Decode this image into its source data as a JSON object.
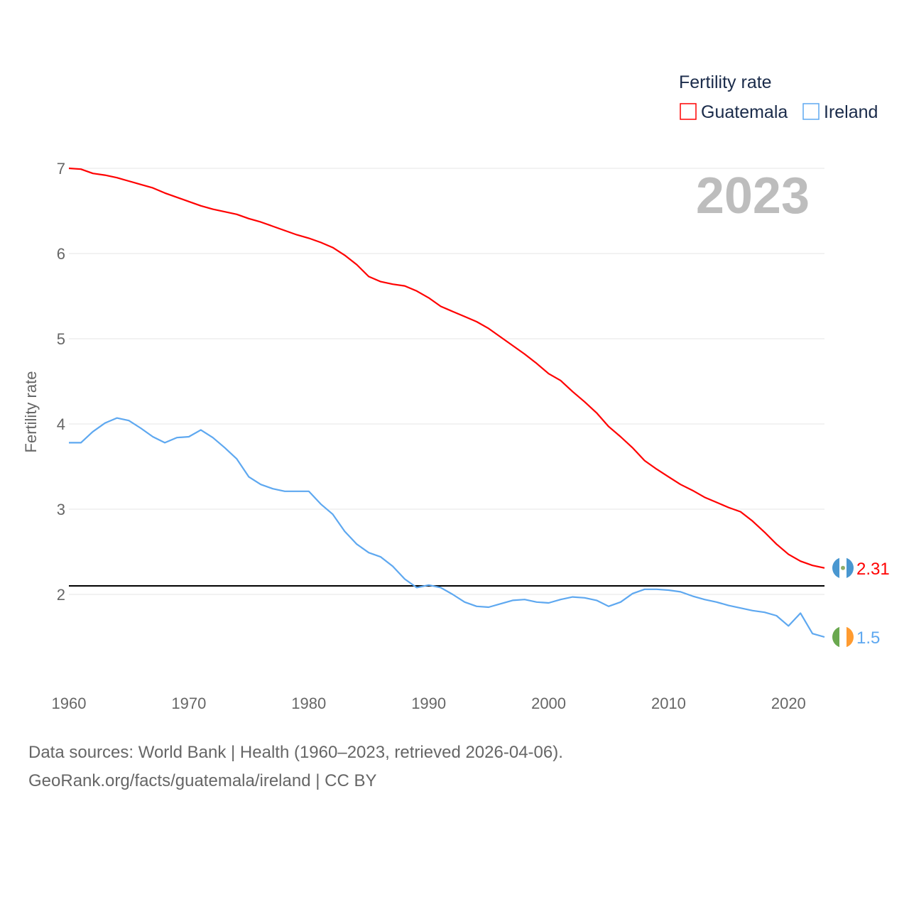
{
  "chart_data": {
    "type": "line",
    "legend_title": "Fertility rate",
    "ylabel": "Fertility rate",
    "xlabel": "",
    "year_label": "2023",
    "xlim": [
      1960,
      2023
    ],
    "ylim": [
      1.1,
      7.4
    ],
    "x_ticks": [
      1960,
      1970,
      1980,
      1990,
      2000,
      2010,
      2020
    ],
    "y_ticks": [
      2,
      3,
      4,
      5,
      6,
      7
    ],
    "reference_line": 2.1,
    "legend_position": "top-right",
    "x": [
      1960,
      1961,
      1962,
      1963,
      1964,
      1965,
      1966,
      1967,
      1968,
      1969,
      1970,
      1971,
      1972,
      1973,
      1974,
      1975,
      1976,
      1977,
      1978,
      1979,
      1980,
      1981,
      1982,
      1983,
      1984,
      1985,
      1986,
      1987,
      1988,
      1989,
      1990,
      1991,
      1992,
      1993,
      1994,
      1995,
      1996,
      1997,
      1998,
      1999,
      2000,
      2001,
      2002,
      2003,
      2004,
      2005,
      2006,
      2007,
      2008,
      2009,
      2010,
      2011,
      2012,
      2013,
      2014,
      2015,
      2016,
      2017,
      2018,
      2019,
      2020,
      2021,
      2022,
      2023
    ],
    "series": [
      {
        "name": "Guatemala",
        "color": "#ff0000",
        "end_label": "2.31",
        "values": [
          7.0,
          6.99,
          6.94,
          6.92,
          6.89,
          6.85,
          6.81,
          6.77,
          6.71,
          6.66,
          6.61,
          6.56,
          6.52,
          6.49,
          6.46,
          6.41,
          6.37,
          6.32,
          6.27,
          6.22,
          6.18,
          6.13,
          6.07,
          5.98,
          5.87,
          5.73,
          5.67,
          5.64,
          5.62,
          5.56,
          5.48,
          5.38,
          5.32,
          5.26,
          5.2,
          5.12,
          5.02,
          4.92,
          4.82,
          4.71,
          4.59,
          4.51,
          4.38,
          4.26,
          4.13,
          3.97,
          3.85,
          3.72,
          3.57,
          3.47,
          3.38,
          3.29,
          3.22,
          3.14,
          3.08,
          3.02,
          2.97,
          2.86,
          2.73,
          2.59,
          2.47,
          2.39,
          2.34,
          2.31
        ]
      },
      {
        "name": "Ireland",
        "color": "#5ea8f0",
        "end_label": "1.5",
        "values": [
          3.78,
          3.78,
          3.91,
          4.01,
          4.07,
          4.04,
          3.95,
          3.85,
          3.78,
          3.84,
          3.85,
          3.93,
          3.84,
          3.72,
          3.59,
          3.38,
          3.29,
          3.24,
          3.21,
          3.21,
          3.21,
          3.06,
          2.94,
          2.74,
          2.59,
          2.49,
          2.44,
          2.33,
          2.18,
          2.08,
          2.11,
          2.08,
          2.0,
          1.91,
          1.86,
          1.85,
          1.89,
          1.93,
          1.94,
          1.91,
          1.9,
          1.94,
          1.97,
          1.96,
          1.93,
          1.86,
          1.91,
          2.01,
          2.06,
          2.06,
          2.05,
          2.03,
          1.98,
          1.94,
          1.91,
          1.87,
          1.84,
          1.81,
          1.79,
          1.75,
          1.63,
          1.78,
          1.54,
          1.5
        ]
      }
    ]
  },
  "footer": {
    "line1": "Data sources: World Bank | Health (1960–2023, retrieved 2026-04-06).",
    "line2": "GeoRank.org/facts/guatemala/ireland | CC BY"
  }
}
